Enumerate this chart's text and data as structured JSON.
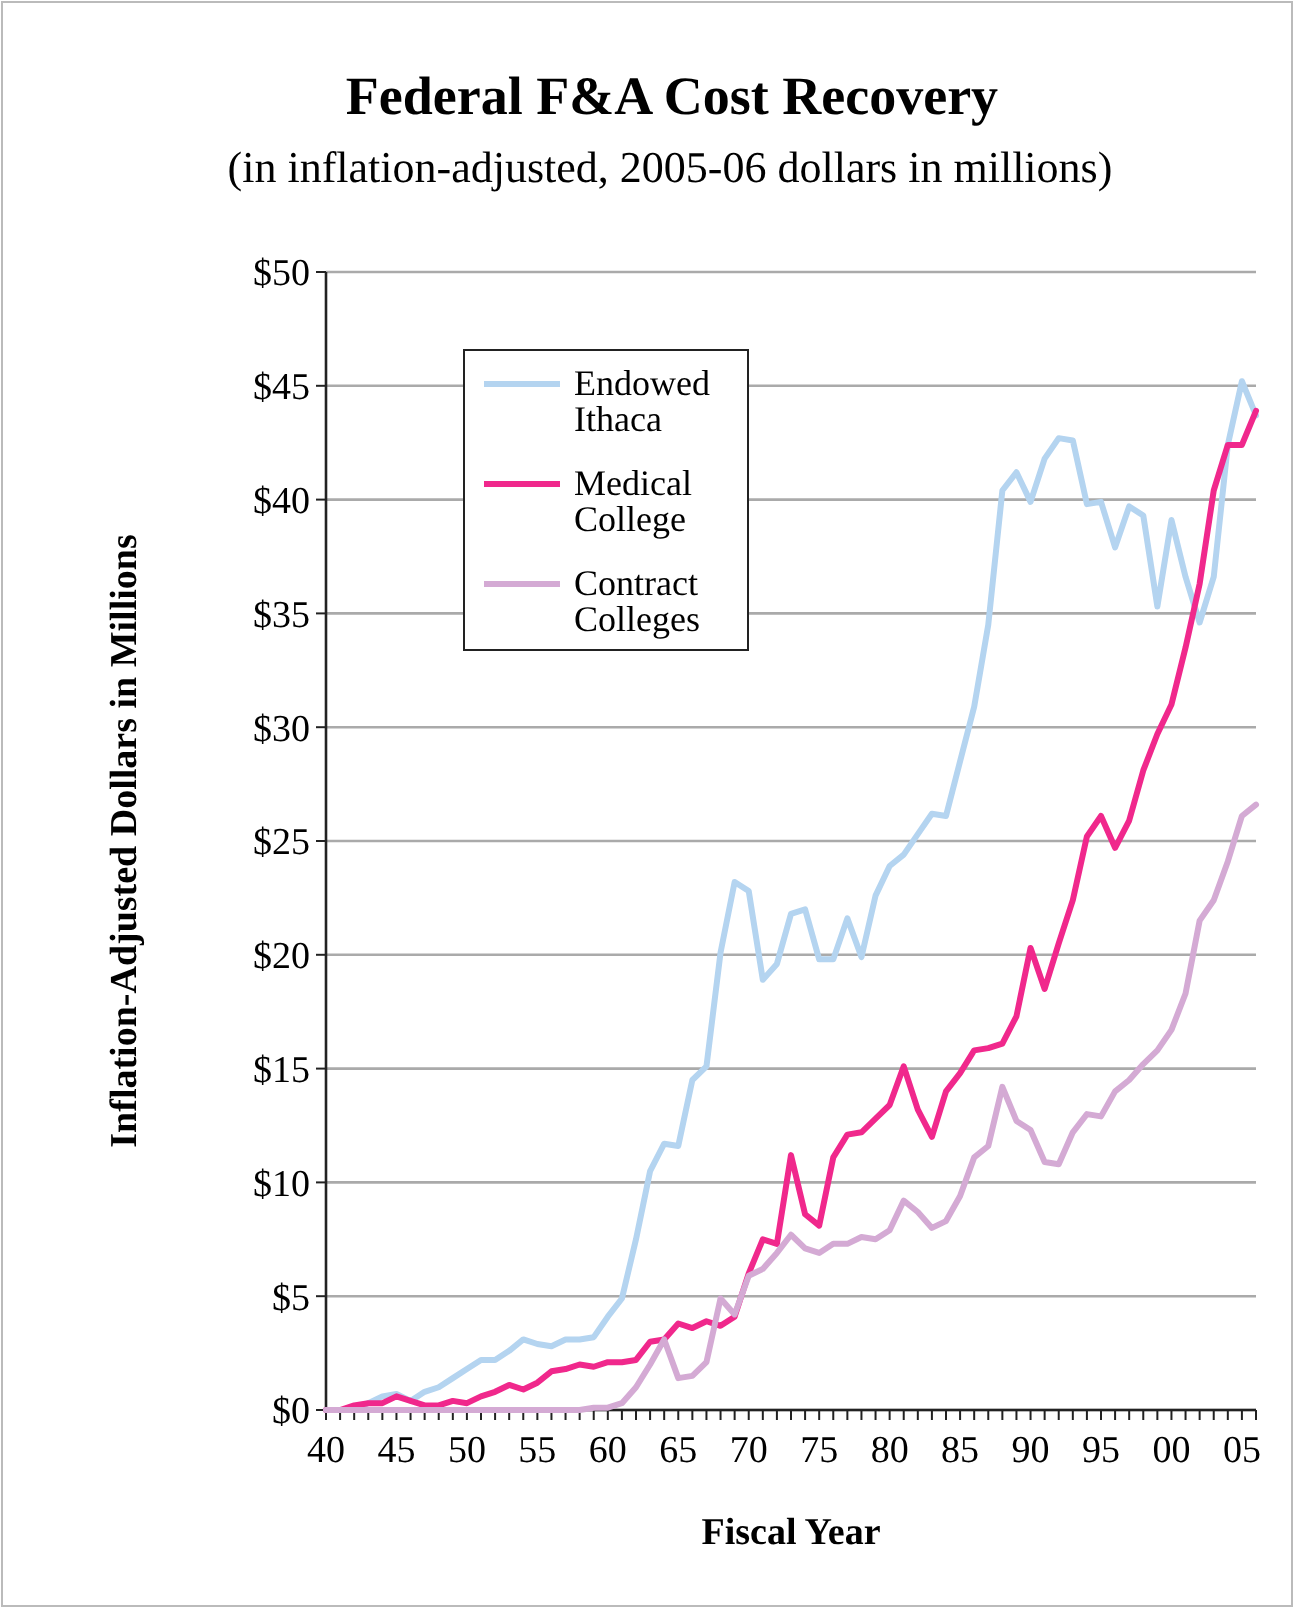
{
  "chart_data": {
    "type": "line",
    "title": "Federal F&A Cost Recovery",
    "subtitle": "(in inflation-adjusted, 2005-06 dollars in millions)",
    "xlabel": "Fiscal Year",
    "ylabel": "Inflation-Adjusted Dollars in Millions",
    "x": [
      1940,
      1941,
      1942,
      1943,
      1944,
      1945,
      1946,
      1947,
      1948,
      1949,
      1950,
      1951,
      1952,
      1953,
      1954,
      1955,
      1956,
      1957,
      1958,
      1959,
      1960,
      1961,
      1962,
      1963,
      1964,
      1965,
      1966,
      1967,
      1968,
      1969,
      1970,
      1971,
      1972,
      1973,
      1974,
      1975,
      1976,
      1977,
      1978,
      1979,
      1980,
      1981,
      1982,
      1983,
      1984,
      1985,
      1986,
      1987,
      1988,
      1989,
      1990,
      1991,
      1992,
      1993,
      1994,
      1995,
      1996,
      1997,
      1998,
      1999,
      2000,
      2001,
      2002,
      2003,
      2004,
      2005,
      2006
    ],
    "series": [
      {
        "name": "Endowed Ithaca",
        "color": "#b4d4f0",
        "values": [
          0,
          0,
          0,
          0.3,
          0.6,
          0.7,
          0.4,
          0.8,
          1.0,
          1.4,
          1.8,
          2.2,
          2.2,
          2.6,
          3.1,
          2.9,
          2.8,
          3.1,
          3.1,
          3.2,
          4.1,
          4.9,
          7.5,
          10.5,
          11.7,
          11.6,
          14.5,
          15.1,
          20.1,
          23.2,
          22.8,
          18.9,
          19.6,
          21.8,
          22.0,
          19.8,
          19.8,
          21.6,
          19.9,
          22.6,
          23.9,
          24.4,
          25.3,
          26.2,
          26.1,
          28.5,
          30.9,
          34.5,
          40.4,
          41.2,
          39.9,
          41.8,
          42.7,
          42.6,
          39.8,
          39.9,
          37.9,
          39.7,
          39.3,
          35.3,
          39.1,
          36.6,
          34.6,
          36.6,
          42.4,
          45.2,
          43.7
        ]
      },
      {
        "name": "Medical College",
        "color": "#f0288c",
        "values": [
          0,
          0,
          0.2,
          0.3,
          0.3,
          0.6,
          0.4,
          0.2,
          0.2,
          0.4,
          0.3,
          0.6,
          0.8,
          1.1,
          0.9,
          1.2,
          1.7,
          1.8,
          2.0,
          1.9,
          2.1,
          2.1,
          2.2,
          3.0,
          3.1,
          3.8,
          3.6,
          3.9,
          3.7,
          4.1,
          6.0,
          7.5,
          7.3,
          11.2,
          8.6,
          8.1,
          11.1,
          12.1,
          12.2,
          12.8,
          13.4,
          15.1,
          13.2,
          12.0,
          14.0,
          14.8,
          15.8,
          15.9,
          16.1,
          17.3,
          20.3,
          18.5,
          20.5,
          22.4,
          25.2,
          26.1,
          24.7,
          25.9,
          28.1,
          29.7,
          31.0,
          33.5,
          36.3,
          40.4,
          42.4,
          42.4,
          43.9
        ]
      },
      {
        "name": "Contract Colleges",
        "color": "#d4aad4",
        "values": [
          0,
          0,
          0,
          0,
          0,
          0,
          0,
          0,
          0,
          0,
          0,
          0,
          0,
          0,
          0,
          0,
          0,
          0,
          0,
          0.1,
          0.1,
          0.3,
          1.0,
          2.0,
          3.1,
          1.4,
          1.5,
          2.1,
          4.9,
          4.2,
          5.9,
          6.2,
          6.9,
          7.7,
          7.1,
          6.9,
          7.3,
          7.3,
          7.6,
          7.5,
          7.9,
          9.2,
          8.7,
          8.0,
          8.3,
          9.4,
          11.1,
          11.6,
          14.2,
          12.7,
          12.3,
          10.9,
          10.8,
          12.2,
          13.0,
          12.9,
          14.0,
          14.5,
          15.2,
          15.8,
          16.7,
          18.3,
          21.5,
          22.4,
          24.1,
          26.1,
          26.6
        ]
      }
    ],
    "xlim": [
      1940,
      2006
    ],
    "xticks": [
      {
        "value": 1940,
        "label": "40"
      },
      {
        "value": 1941,
        "label": null
      },
      {
        "value": 1942,
        "label": null
      },
      {
        "value": 1943,
        "label": null
      },
      {
        "value": 1944,
        "label": null
      },
      {
        "value": 1945,
        "label": "45"
      },
      {
        "value": 1946,
        "label": null
      },
      {
        "value": 1947,
        "label": null
      },
      {
        "value": 1948,
        "label": null
      },
      {
        "value": 1949,
        "label": null
      },
      {
        "value": 1950,
        "label": "50"
      },
      {
        "value": 1951,
        "label": null
      },
      {
        "value": 1952,
        "label": null
      },
      {
        "value": 1953,
        "label": null
      },
      {
        "value": 1954,
        "label": null
      },
      {
        "value": 1955,
        "label": "55"
      },
      {
        "value": 1956,
        "label": null
      },
      {
        "value": 1957,
        "label": null
      },
      {
        "value": 1958,
        "label": null
      },
      {
        "value": 1959,
        "label": null
      },
      {
        "value": 1960,
        "label": "60"
      },
      {
        "value": 1961,
        "label": null
      },
      {
        "value": 1962,
        "label": null
      },
      {
        "value": 1963,
        "label": null
      },
      {
        "value": 1964,
        "label": null
      },
      {
        "value": 1965,
        "label": "65"
      },
      {
        "value": 1966,
        "label": null
      },
      {
        "value": 1967,
        "label": null
      },
      {
        "value": 1968,
        "label": null
      },
      {
        "value": 1969,
        "label": null
      },
      {
        "value": 1970,
        "label": "70"
      },
      {
        "value": 1971,
        "label": null
      },
      {
        "value": 1972,
        "label": null
      },
      {
        "value": 1973,
        "label": null
      },
      {
        "value": 1974,
        "label": null
      },
      {
        "value": 1975,
        "label": "75"
      },
      {
        "value": 1976,
        "label": null
      },
      {
        "value": 1977,
        "label": null
      },
      {
        "value": 1978,
        "label": null
      },
      {
        "value": 1979,
        "label": null
      },
      {
        "value": 1980,
        "label": "80"
      },
      {
        "value": 1981,
        "label": null
      },
      {
        "value": 1982,
        "label": null
      },
      {
        "value": 1983,
        "label": null
      },
      {
        "value": 1984,
        "label": null
      },
      {
        "value": 1985,
        "label": "85"
      },
      {
        "value": 1986,
        "label": null
      },
      {
        "value": 1987,
        "label": null
      },
      {
        "value": 1988,
        "label": null
      },
      {
        "value": 1989,
        "label": null
      },
      {
        "value": 1990,
        "label": "90"
      },
      {
        "value": 1991,
        "label": null
      },
      {
        "value": 1992,
        "label": null
      },
      {
        "value": 1993,
        "label": null
      },
      {
        "value": 1994,
        "label": null
      },
      {
        "value": 1995,
        "label": "95"
      },
      {
        "value": 1996,
        "label": null
      },
      {
        "value": 1997,
        "label": null
      },
      {
        "value": 1998,
        "label": null
      },
      {
        "value": 1999,
        "label": null
      },
      {
        "value": 2000,
        "label": "00"
      },
      {
        "value": 2001,
        "label": null
      },
      {
        "value": 2002,
        "label": null
      },
      {
        "value": 2003,
        "label": null
      },
      {
        "value": 2004,
        "label": null
      },
      {
        "value": 2005,
        "label": "05"
      },
      {
        "value": 2006,
        "label": null
      }
    ],
    "ylim": [
      0,
      50
    ],
    "yticks": [
      {
        "value": 0,
        "label": "$0"
      },
      {
        "value": 5,
        "label": "$5"
      },
      {
        "value": 10,
        "label": "$10"
      },
      {
        "value": 15,
        "label": "$15"
      },
      {
        "value": 20,
        "label": "$20"
      },
      {
        "value": 25,
        "label": "$25"
      },
      {
        "value": 30,
        "label": "$30"
      },
      {
        "value": 35,
        "label": "$35"
      },
      {
        "value": 40,
        "label": "$40"
      },
      {
        "value": 45,
        "label": "$45"
      },
      {
        "value": 50,
        "label": "$50"
      }
    ],
    "grid": "y",
    "legend": "top left",
    "marker": "none",
    "line_style": "solid"
  }
}
